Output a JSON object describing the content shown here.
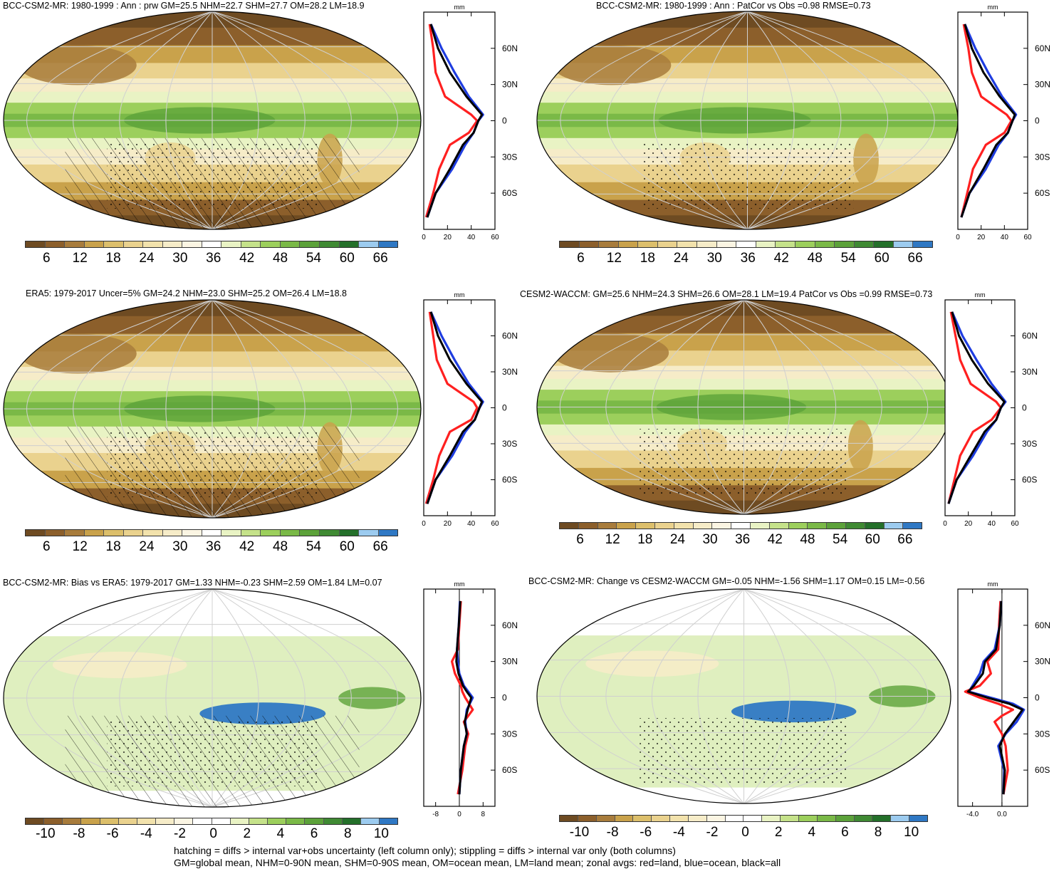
{
  "colors": {
    "abs_palette": [
      "#6e4b22",
      "#8c5f2b",
      "#a87c3c",
      "#c9a24b",
      "#dcbf6b",
      "#ead28e",
      "#f2e2ac",
      "#f6ecc8",
      "#fbf5e3",
      "#ffffff",
      "#e9f3c4",
      "#c5e28a",
      "#9ccf5c",
      "#7ab947",
      "#5ca23a",
      "#3f8a33",
      "#24702a",
      "#9ccbef",
      "#2f78c4"
    ],
    "diff_palette": [
      "#6e4b22",
      "#8c5f2b",
      "#a87c3c",
      "#c9a24b",
      "#dcbf6b",
      "#ead28e",
      "#f2e2ac",
      "#f6ecc8",
      "#fbf5e3",
      "#ffffff",
      "#ffffff",
      "#e9f3c4",
      "#c5e28a",
      "#9ccf5c",
      "#7ab947",
      "#5ca23a",
      "#3f8a33",
      "#24702a",
      "#9ccbef",
      "#2f78c4"
    ],
    "land": "#ff2020",
    "ocean": "#1f3de0",
    "all": "#000000"
  },
  "panels": [
    {
      "id": "model",
      "title": "BCC-CSM2-MR: 1980-1999 : Ann : prw GM=25.5 NHM=22.7 SHM=27.7 OM=28.2 LM=18.9",
      "colorbar_labels": [
        "6",
        "12",
        "18",
        "24",
        "30",
        "36",
        "42",
        "48",
        "54",
        "60",
        "66"
      ],
      "zonal_xticks": [
        "0",
        "20",
        "40",
        "60"
      ],
      "zonal_unit": "mm",
      "lat_labels": [
        "60N",
        "30N",
        "0",
        "30S",
        "60S"
      ]
    },
    {
      "id": "model_vs_cesm",
      "title": "BCC-CSM2-MR: 1980-1999 : Ann : PatCor vs Obs =0.98 RMSE=0.73",
      "colorbar_labels": [
        "6",
        "12",
        "18",
        "24",
        "30",
        "36",
        "42",
        "48",
        "54",
        "60",
        "66"
      ],
      "zonal_xticks": [
        "0",
        "20",
        "40",
        "60"
      ],
      "zonal_unit": "mm",
      "lat_labels": [
        "60N",
        "30N",
        "0",
        "30S",
        "60S"
      ]
    },
    {
      "id": "era5",
      "title": "ERA5: 1979-2017 Uncer=5% GM=24.2 NHM=23.0 SHM=25.2 OM=26.4 LM=18.8",
      "colorbar_labels": [
        "6",
        "12",
        "18",
        "24",
        "30",
        "36",
        "42",
        "48",
        "54",
        "60",
        "66"
      ],
      "zonal_xticks": [
        "0",
        "20",
        "40",
        "60"
      ],
      "zonal_unit": "mm",
      "lat_labels": [
        "60N",
        "30N",
        "0",
        "30S",
        "60S"
      ]
    },
    {
      "id": "cesm2",
      "title": "CESM2-WACCM: GM=25.6 NHM=24.3 SHM=26.6 OM=28.1 LM=19.4 PatCor vs Obs =0.99 RMSE=0.73",
      "colorbar_labels": [
        "6",
        "12",
        "18",
        "24",
        "30",
        "36",
        "42",
        "48",
        "54",
        "60",
        "66"
      ],
      "zonal_xticks": [
        "0",
        "20",
        "40",
        "60"
      ],
      "zonal_unit": "mm",
      "lat_labels": [
        "60N",
        "30N",
        "0",
        "30S",
        "60S"
      ]
    },
    {
      "id": "bias",
      "title": "BCC-CSM2-MR: Bias vs ERA5: 1979-2017 GM=1.33 NHM=-0.23 SHM=2.59 OM=1.84 LM=0.07",
      "colorbar_labels": [
        "-10",
        "-8",
        "-6",
        "-4",
        "-2",
        "0",
        "2",
        "4",
        "6",
        "8",
        "10"
      ],
      "zonal_xticks": [
        "-8",
        "0",
        "8"
      ],
      "zonal_unit": "mm",
      "lat_labels": [
        "60N",
        "30N",
        "0",
        "30S",
        "60S"
      ]
    },
    {
      "id": "change",
      "title": "BCC-CSM2-MR: Change vs CESM2-WACCM GM=-0.05 NHM=-1.56 SHM=1.17 OM=0.15 LM=-0.56",
      "colorbar_labels": [
        "-10",
        "-8",
        "-6",
        "-4",
        "-2",
        "0",
        "2",
        "4",
        "6",
        "8",
        "10"
      ],
      "zonal_xticks": [
        "-4.0",
        "0.0"
      ],
      "zonal_unit": "mm",
      "lat_labels": [
        "60N",
        "30N",
        "0",
        "30S",
        "60S"
      ]
    }
  ],
  "footnotes": {
    "line1": "hatching = diffs > internal var+obs uncertainty (left column only); stippling = diffs > internal var only (both columns)",
    "line2": "GM=global mean, NHM=0-90N mean, SHM=0-90S mean, OM=ocean mean, LM=land mean; zonal avgs: red=land, blue=ocean, black=all"
  },
  "chart_data": [
    {
      "type": "line",
      "panel": "model",
      "title": "BCC-CSM2-MR: 1980-1999 : Ann : prw GM=25.5 NHM=22.7 SHM=27.7 OM=28.2 LM=18.9",
      "xlabel": "mm",
      "xlim": [
        0,
        60
      ],
      "ylim": [
        -90,
        90
      ],
      "y": [
        80,
        60,
        40,
        20,
        5,
        0,
        -10,
        -20,
        -40,
        -60,
        -80
      ],
      "series": [
        {
          "name": "red=land",
          "values": [
            5,
            8,
            10,
            18,
            40,
            45,
            38,
            22,
            13,
            8,
            2
          ]
        },
        {
          "name": "blue=ocean",
          "values": [
            6,
            15,
            26,
            38,
            50,
            46,
            42,
            35,
            24,
            10,
            3
          ]
        },
        {
          "name": "black=all",
          "values": [
            6,
            12,
            22,
            36,
            49,
            46,
            42,
            33,
            22,
            10,
            3
          ]
        }
      ]
    },
    {
      "type": "line",
      "panel": "model_vs_cesm",
      "xlabel": "mm",
      "xlim": [
        0,
        60
      ],
      "ylim": [
        -90,
        90
      ],
      "y": [
        80,
        60,
        40,
        20,
        5,
        0,
        -10,
        -20,
        -40,
        -60,
        -80
      ],
      "series": [
        {
          "name": "red=land",
          "values": [
            5,
            9,
            12,
            20,
            42,
            46,
            40,
            24,
            13,
            8,
            3
          ]
        },
        {
          "name": "blue=ocean",
          "values": [
            6,
            15,
            26,
            38,
            50,
            47,
            43,
            35,
            24,
            10,
            3
          ]
        },
        {
          "name": "black=all",
          "values": [
            6,
            12,
            22,
            36,
            49,
            47,
            43,
            33,
            22,
            10,
            3
          ]
        }
      ]
    },
    {
      "type": "line",
      "panel": "era5",
      "xlabel": "mm",
      "xlim": [
        0,
        60
      ],
      "ylim": [
        -90,
        90
      ],
      "y": [
        80,
        60,
        40,
        20,
        5,
        0,
        -10,
        -20,
        -40,
        -60,
        -80
      ],
      "series": [
        {
          "name": "red=land",
          "values": [
            5,
            8,
            11,
            20,
            42,
            45,
            40,
            22,
            13,
            8,
            2
          ]
        },
        {
          "name": "blue=ocean",
          "values": [
            6,
            15,
            26,
            38,
            50,
            47,
            43,
            35,
            24,
            10,
            3
          ]
        },
        {
          "name": "black=all",
          "values": [
            6,
            12,
            22,
            36,
            49,
            47,
            43,
            33,
            22,
            10,
            3
          ]
        }
      ]
    },
    {
      "type": "line",
      "panel": "cesm2",
      "xlabel": "mm",
      "xlim": [
        0,
        60
      ],
      "ylim": [
        -90,
        90
      ],
      "y": [
        80,
        60,
        40,
        20,
        5,
        0,
        -10,
        -20,
        -40,
        -60,
        -80
      ],
      "series": [
        {
          "name": "red=land",
          "values": [
            5,
            9,
            13,
            22,
            44,
            48,
            40,
            24,
            13,
            8,
            3
          ]
        },
        {
          "name": "blue=ocean",
          "values": [
            6,
            15,
            27,
            40,
            52,
            48,
            44,
            36,
            24,
            10,
            3
          ]
        },
        {
          "name": "black=all",
          "values": [
            6,
            12,
            23,
            37,
            51,
            48,
            44,
            34,
            22,
            10,
            3
          ]
        }
      ]
    },
    {
      "type": "line",
      "panel": "bias",
      "xlabel": "mm",
      "xlim": [
        -12,
        12
      ],
      "ylim": [
        -90,
        90
      ],
      "y": [
        80,
        60,
        40,
        30,
        20,
        10,
        5,
        0,
        -10,
        -20,
        -30,
        -40,
        -60,
        -80
      ],
      "series": [
        {
          "name": "red=land",
          "values": [
            0.5,
            0.0,
            -0.5,
            -2.5,
            -1.5,
            0.5,
            1.0,
            2.0,
            4.5,
            1.5,
            3.0,
            2.0,
            1.0,
            -0.5
          ]
        },
        {
          "name": "blue=ocean",
          "values": [
            0.2,
            -0.2,
            -0.8,
            -0.5,
            0.0,
            1.5,
            3.0,
            4.5,
            2.5,
            2.0,
            2.5,
            1.5,
            0.5,
            0.0
          ]
        },
        {
          "name": "black=all",
          "values": [
            0.3,
            -0.2,
            -0.8,
            -1.0,
            -0.3,
            1.2,
            2.5,
            4.0,
            2.8,
            1.8,
            2.5,
            1.5,
            0.5,
            0.0
          ]
        }
      ]
    },
    {
      "type": "line",
      "panel": "change",
      "xlabel": "mm",
      "xlim": [
        -6,
        3.5
      ],
      "ylim": [
        -90,
        90
      ],
      "y": [
        80,
        60,
        40,
        30,
        20,
        10,
        5,
        0,
        -5,
        -10,
        -15,
        -20,
        -30,
        -40,
        -60,
        -80
      ],
      "series": [
        {
          "name": "red=land",
          "values": [
            -0.2,
            -0.4,
            -0.5,
            -2.0,
            -1.5,
            -3.0,
            -5.0,
            -3.0,
            -0.5,
            1.5,
            0.0,
            -1.0,
            0.0,
            0.5,
            0.8,
            0.2
          ]
        },
        {
          "name": "blue=ocean",
          "values": [
            -0.1,
            -0.3,
            -1.0,
            -2.5,
            -3.0,
            -4.0,
            -4.5,
            -1.5,
            1.5,
            3.0,
            2.5,
            2.0,
            0.5,
            -0.5,
            0.3,
            0.2
          ]
        },
        {
          "name": "black=all",
          "values": [
            -0.1,
            -0.3,
            -0.8,
            -2.3,
            -2.6,
            -3.8,
            -4.6,
            -2.0,
            1.0,
            2.8,
            2.2,
            1.6,
            0.4,
            -0.3,
            0.4,
            0.2
          ]
        }
      ]
    }
  ]
}
